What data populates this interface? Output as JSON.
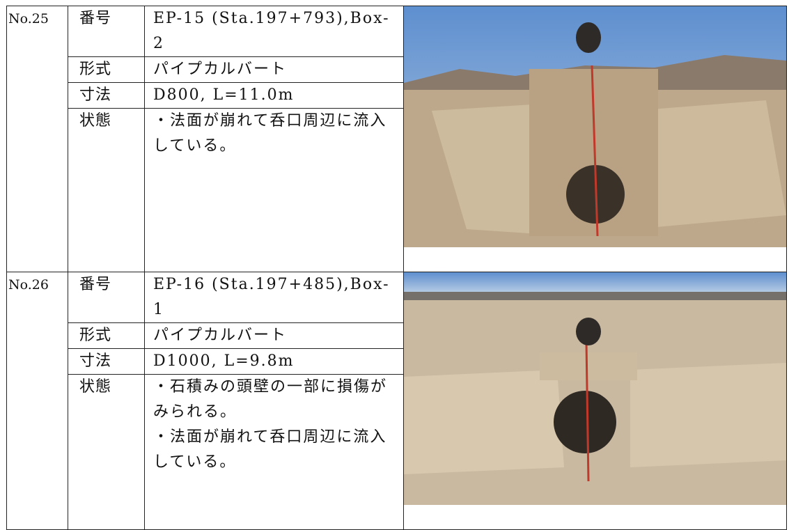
{
  "entries": [
    {
      "no": "No.25",
      "rows": [
        {
          "label": "番号",
          "value": "EP-15 (Sta.197+793),Box-2"
        },
        {
          "label": "形式",
          "value": "パイプカルバート"
        },
        {
          "label": "寸法",
          "value": "D800, L=11.0m"
        }
      ],
      "status_label": "状態",
      "status": [
        "・法面が崩れて呑口周辺に流入している。"
      ]
    },
    {
      "no": "No.26",
      "rows": [
        {
          "label": "番号",
          "value": "EP-16 (Sta.197+485),Box-1"
        },
        {
          "label": "形式",
          "value": "パイプカルバート"
        },
        {
          "label": "寸法",
          "value": "D1000, L=9.8m"
        }
      ],
      "status_label": "状態",
      "status": [
        "・石積みの頭壁の一部に損傷がみられる。",
        "・法面が崩れて呑口周辺に流入している。"
      ]
    }
  ]
}
